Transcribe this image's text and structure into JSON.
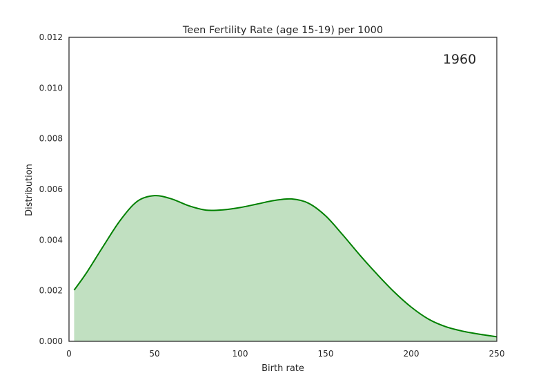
{
  "chart_data": {
    "type": "area",
    "title": "Teen Fertility Rate (age 15-19) per 1000",
    "xlabel": "Birth rate",
    "ylabel": "Distribution",
    "annotation": "1960",
    "xlim": [
      0,
      250
    ],
    "ylim": [
      0,
      0.012
    ],
    "xticks": [
      "0",
      "50",
      "100",
      "150",
      "200",
      "250"
    ],
    "yticks": [
      "0.000",
      "0.002",
      "0.004",
      "0.006",
      "0.008",
      "0.010",
      "0.012"
    ],
    "grid": false,
    "line_color": "#008000",
    "fill_color": "#c1e0c1",
    "series": [
      {
        "x": [
          3,
          10,
          20,
          30,
          40,
          50,
          60,
          70,
          80,
          90,
          100,
          110,
          120,
          130,
          140,
          150,
          160,
          170,
          180,
          190,
          200,
          210,
          220,
          230,
          240,
          250
        ],
        "y": [
          0.00202,
          0.00268,
          0.00375,
          0.00478,
          0.00553,
          0.00575,
          0.00562,
          0.00535,
          0.00518,
          0.00519,
          0.00528,
          0.00542,
          0.00556,
          0.00562,
          0.00545,
          0.00495,
          0.0042,
          0.0034,
          0.00265,
          0.00195,
          0.00135,
          0.00088,
          0.00058,
          0.0004,
          0.00028,
          0.00018
        ]
      }
    ]
  }
}
